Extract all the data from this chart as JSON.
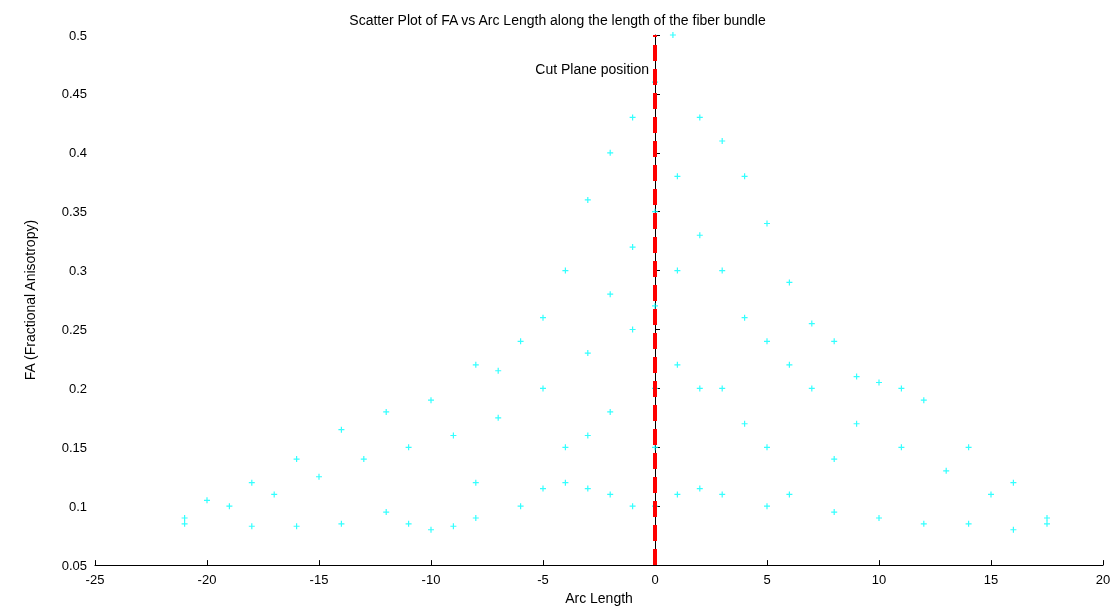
{
  "chart_data": {
    "type": "scatter",
    "title": "Scatter Plot of FA vs Arc Length along the length of the fiber bundle",
    "xlabel": "Arc Length",
    "ylabel": "FA (Fractional Anisotropy)",
    "x": [
      -21,
      -20,
      -18,
      -16,
      -14,
      -12,
      -10,
      -8,
      -7,
      -6,
      -5,
      -4,
      -3,
      -2,
      -1,
      0,
      0.8,
      2,
      3,
      4,
      5,
      6,
      7,
      8,
      9,
      10,
      11,
      12,
      14,
      16,
      17.5,
      -21,
      -18,
      -16,
      -14,
      -12,
      -11,
      -10,
      -9,
      -8,
      -6,
      -5,
      -4,
      -3,
      -2,
      -1,
      0,
      1,
      2,
      3,
      5,
      6,
      8,
      10,
      12,
      14,
      16,
      17.5,
      -19,
      -17,
      -15,
      -13,
      -11,
      -9,
      -7,
      -5,
      -3,
      -2,
      -1,
      0,
      1,
      1,
      2,
      3,
      4,
      5,
      6,
      7,
      9,
      11,
      13,
      15,
      0,
      -1,
      1,
      2,
      -2,
      3,
      4,
      -3,
      0,
      -4,
      5,
      8,
      -8,
      0
    ],
    "values": [
      0.09,
      0.105,
      0.12,
      0.14,
      0.165,
      0.18,
      0.19,
      0.22,
      0.215,
      0.24,
      0.26,
      0.3,
      0.36,
      0.4,
      0.43,
      0.46,
      0.5,
      0.43,
      0.41,
      0.38,
      0.34,
      0.29,
      0.255,
      0.24,
      0.21,
      0.205,
      0.2,
      0.19,
      0.15,
      0.12,
      0.09,
      0.085,
      0.083,
      0.083,
      0.085,
      0.095,
      0.085,
      0.08,
      0.083,
      0.09,
      0.1,
      0.115,
      0.12,
      0.115,
      0.11,
      0.1,
      0.1,
      0.11,
      0.115,
      0.11,
      0.1,
      0.11,
      0.095,
      0.09,
      0.085,
      0.085,
      0.08,
      0.085,
      0.1,
      0.11,
      0.125,
      0.14,
      0.15,
      0.16,
      0.175,
      0.2,
      0.23,
      0.28,
      0.32,
      0.35,
      0.38,
      0.3,
      0.33,
      0.3,
      0.26,
      0.24,
      0.22,
      0.2,
      0.17,
      0.15,
      0.13,
      0.11,
      0.2,
      0.25,
      0.22,
      0.2,
      0.18,
      0.2,
      0.17,
      0.16,
      0.15,
      0.15,
      0.15,
      0.14,
      0.12,
      0.27
    ],
    "color": "#00ffff",
    "marker": "cross",
    "xlim": [
      -25,
      20
    ],
    "xticks": [
      -25,
      -20,
      -15,
      -10,
      -5,
      0,
      5,
      10,
      15,
      20
    ],
    "ylim": [
      0.05,
      0.5
    ],
    "yticks": [
      0.05,
      0.1,
      0.15,
      0.2,
      0.25,
      0.3,
      0.35,
      0.4,
      0.45,
      0.5
    ],
    "grid": false,
    "ref_lines": [
      {
        "axis": "x",
        "value": 0,
        "label": "Cut Plane position",
        "color": "#ff0000",
        "line_style": "dashed"
      }
    ]
  }
}
